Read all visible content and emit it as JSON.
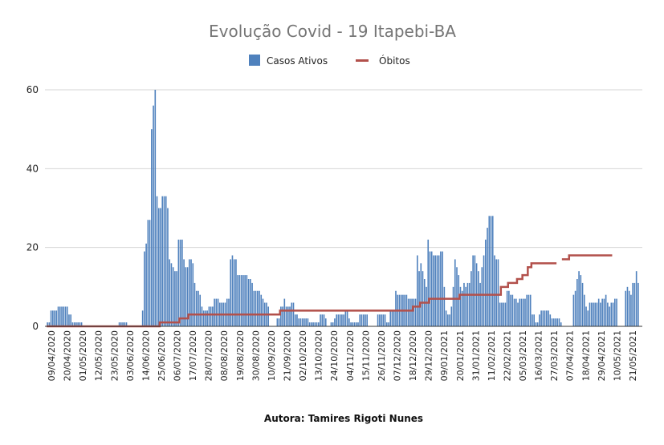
{
  "chart_data": {
    "type": "bar",
    "title": "Evolução Covid - 19 Itapebi-BA",
    "footer": "Autora: Tamires Rigoti Nunes",
    "ylim": [
      0,
      60
    ],
    "yticks": [
      "0",
      "20",
      "40",
      "60"
    ],
    "grid": true,
    "legend_position": "top",
    "colors": {
      "bars": "#4f81bd",
      "line": "#b2504b"
    },
    "x_tick_labels": [
      "09/04/2020",
      "20/04/2020",
      "01/05/2020",
      "12/05/2020",
      "23/05/2020",
      "03/06/2020",
      "14/06/2020",
      "25/06/2020",
      "06/07/2020",
      "17/07/2020",
      "28/07/2020",
      "08/08/2020",
      "19/08/2020",
      "30/08/2020",
      "10/09/2020",
      "21/09/2020",
      "02/10/2020",
      "13/10/2020",
      "24/10/2020",
      "04/11/2020",
      "15/11/2020",
      "26/11/2020",
      "07/12/2020",
      "18/12/2020",
      "29/12/2020",
      "09/01/2021",
      "20/01/2021",
      "31/01/2021",
      "11/02/2021",
      "22/02/2021",
      "05/03/2021",
      "16/03/2021",
      "27/03/2021",
      "07/04/2021",
      "18/04/2021",
      "29/04/2021",
      "10/05/2021",
      "21/05/2021"
    ],
    "series": [
      {
        "name": "Casos Ativos",
        "kind": "bar",
        "values": [
          1,
          1,
          4,
          4,
          4,
          4,
          5,
          5,
          5,
          5,
          5,
          5,
          3,
          3,
          1,
          1,
          1,
          1,
          1,
          1,
          0,
          0,
          0,
          0,
          0,
          0,
          0,
          0,
          0,
          0,
          0,
          0,
          0,
          0,
          0,
          0,
          0,
          0,
          0,
          0,
          1,
          1,
          1,
          1,
          1,
          0,
          0,
          0,
          0,
          0,
          0,
          0,
          0,
          4,
          19,
          21,
          27,
          27,
          50,
          56,
          60,
          33,
          30,
          30,
          33,
          33,
          33,
          30,
          17,
          16,
          15,
          14,
          14,
          22,
          22,
          22,
          17,
          15,
          15,
          17,
          17,
          16,
          11,
          9,
          9,
          8,
          5,
          4,
          4,
          4,
          5,
          5,
          5,
          7,
          7,
          7,
          6,
          6,
          6,
          6,
          7,
          7,
          17,
          18,
          17,
          17,
          13,
          13,
          13,
          13,
          13,
          13,
          12,
          12,
          11,
          9,
          9,
          9,
          9,
          8,
          7,
          6,
          6,
          5,
          0,
          0,
          0,
          0,
          2,
          2,
          5,
          5,
          7,
          5,
          5,
          5,
          6,
          6,
          3,
          3,
          2,
          2,
          2,
          2,
          2,
          2,
          1,
          1,
          1,
          1,
          1,
          1,
          3,
          3,
          3,
          2,
          0,
          0,
          1,
          1,
          2,
          3,
          3,
          3,
          3,
          3,
          4,
          4,
          2,
          1,
          1,
          1,
          1,
          1,
          3,
          3,
          3,
          3,
          3,
          0,
          0,
          0,
          0,
          0,
          3,
          3,
          3,
          3,
          3,
          1,
          1,
          4,
          4,
          4,
          9,
          8,
          8,
          8,
          8,
          8,
          8,
          7,
          7,
          7,
          7,
          7,
          18,
          14,
          16,
          14,
          12,
          10,
          22,
          19,
          19,
          18,
          18,
          18,
          18,
          19,
          19,
          10,
          4,
          3,
          3,
          5,
          10,
          17,
          15,
          13,
          10,
          9,
          11,
          10,
          11,
          11,
          14,
          18,
          18,
          16,
          14,
          11,
          15,
          18,
          22,
          25,
          28,
          28,
          28,
          18,
          17,
          17,
          6,
          6,
          6,
          6,
          9,
          9,
          8,
          8,
          7,
          7,
          6,
          7,
          7,
          7,
          7,
          8,
          8,
          8,
          3,
          3,
          1,
          1,
          3,
          4,
          4,
          4,
          4,
          4,
          3,
          2,
          2,
          2,
          2,
          2,
          1,
          0,
          0,
          0,
          0,
          0,
          0,
          8,
          9,
          12,
          14,
          13,
          11,
          8,
          5,
          4,
          6,
          6,
          6,
          6,
          6,
          7,
          6,
          7,
          7,
          8,
          6,
          5,
          6,
          6,
          7,
          7,
          0,
          0,
          0,
          0,
          9,
          10,
          9,
          8,
          11,
          11,
          14,
          11
        ]
      },
      {
        "name": "Óbitos",
        "kind": "line",
        "segments": [
          {
            "from": 0,
            "to": 63,
            "value": 0
          },
          {
            "from": 63,
            "to": 74,
            "value": 1
          },
          {
            "from": 74,
            "to": 79,
            "value": 2
          },
          {
            "from": 79,
            "to": 130,
            "value": 3
          },
          {
            "from": 130,
            "to": 204,
            "value": 4
          },
          {
            "from": 204,
            "to": 208,
            "value": 5
          },
          {
            "from": 208,
            "to": 213,
            "value": 6
          },
          {
            "from": 213,
            "to": 230,
            "value": 7
          },
          {
            "from": 230,
            "to": 253,
            "value": 8
          },
          {
            "from": 253,
            "to": 257,
            "value": 10
          },
          {
            "from": 257,
            "to": 262,
            "value": 11
          },
          {
            "from": 262,
            "to": 265,
            "value": 12
          },
          {
            "from": 265,
            "to": 268,
            "value": 13
          },
          {
            "from": 268,
            "to": 270,
            "value": 15
          },
          {
            "from": 270,
            "to": 284,
            "value": 16
          },
          {
            "from": 287,
            "to": 291,
            "value": 17
          },
          {
            "from": 291,
            "to": 315,
            "value": 18
          }
        ]
      }
    ]
  }
}
